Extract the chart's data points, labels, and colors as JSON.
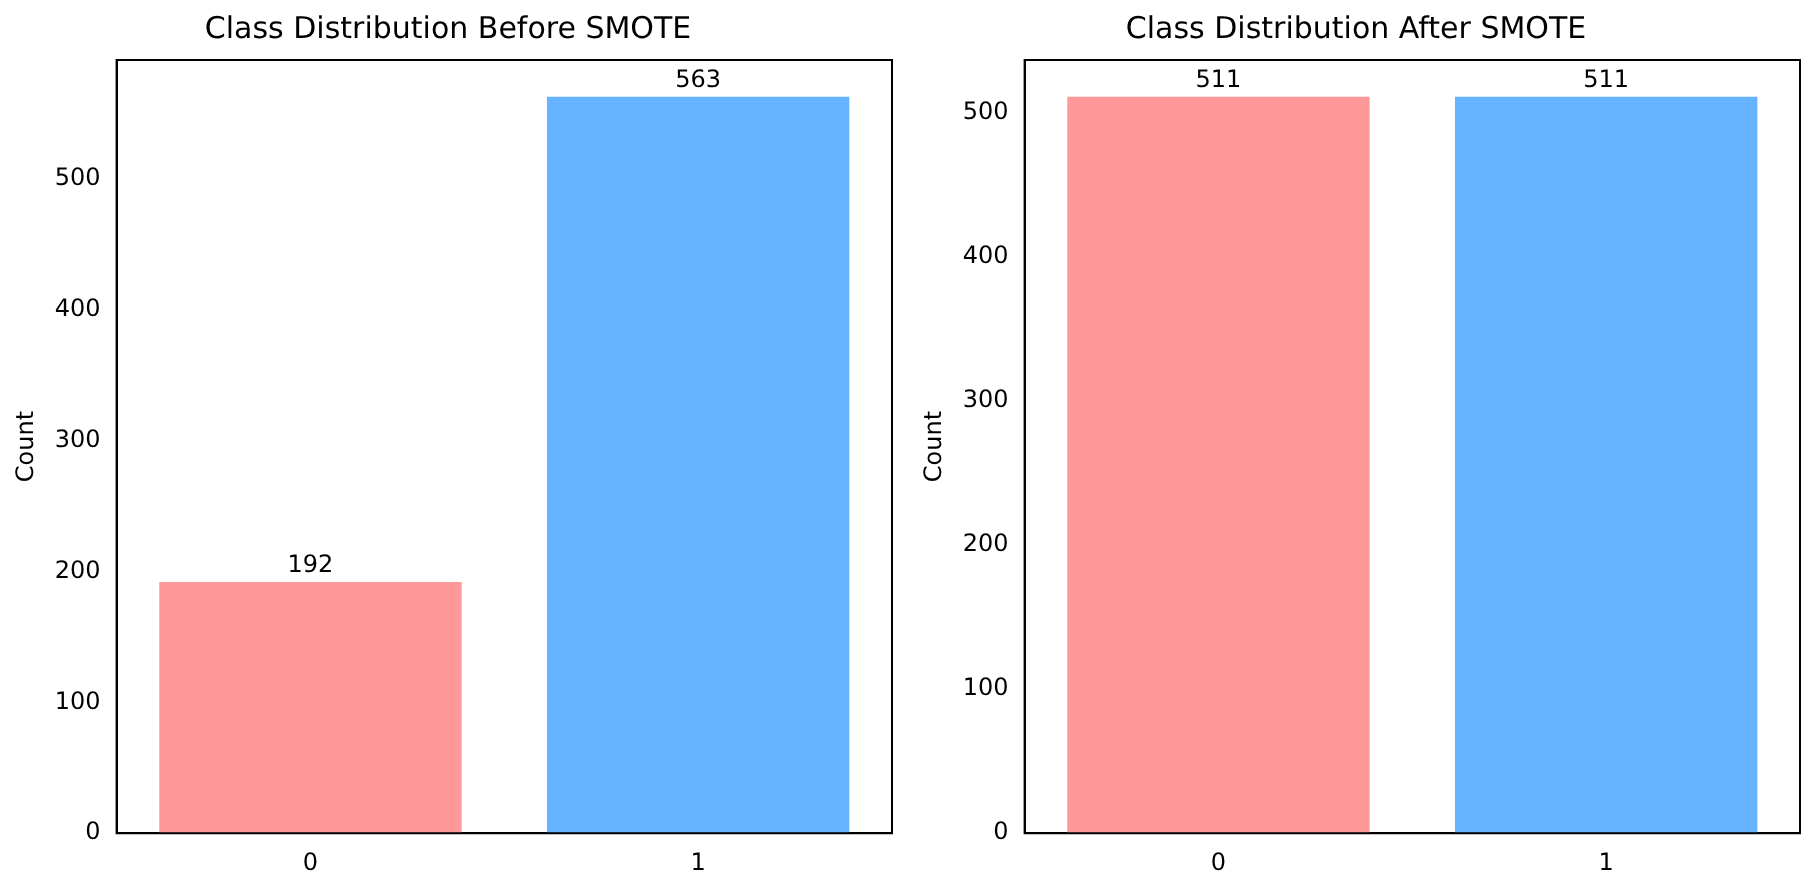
{
  "chart_data": [
    {
      "type": "bar",
      "title": "Class Distribution Before SMOTE",
      "ylabel": "Count",
      "categories": [
        "0",
        "1"
      ],
      "values": [
        192,
        563
      ],
      "colors": [
        "#ff9999",
        "#66b3ff"
      ],
      "ylim": [
        0,
        591
      ],
      "yticks": [
        0,
        100,
        200,
        300,
        400,
        500
      ],
      "data_labels": true,
      "grid": false,
      "legend": false
    },
    {
      "type": "bar",
      "title": "Class Distribution After SMOTE",
      "ylabel": "Count",
      "categories": [
        "0",
        "1"
      ],
      "values": [
        511,
        511
      ],
      "colors": [
        "#ff9999",
        "#66b3ff"
      ],
      "ylim": [
        0,
        536.5
      ],
      "yticks": [
        0,
        100,
        200,
        300,
        400,
        500
      ],
      "data_labels": true,
      "grid": false,
      "legend": false
    }
  ]
}
